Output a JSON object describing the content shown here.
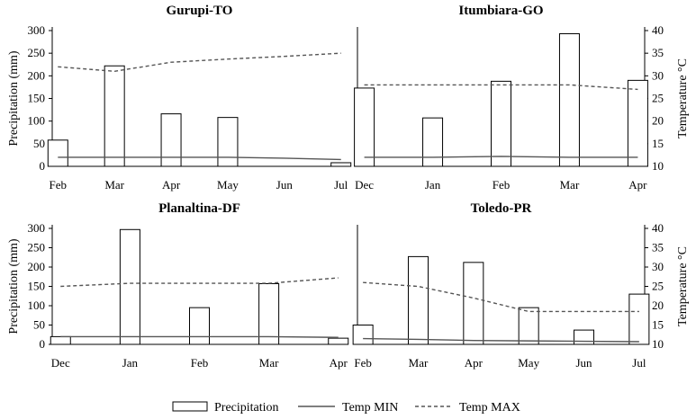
{
  "figure": {
    "legend": {
      "precipitation": "Precipitation",
      "tmin": "Temp MIN",
      "tmax": "Temp MAX"
    },
    "left_axis_label": "Precipitation (mm)",
    "right_axis_label": "Temperature °C"
  },
  "colors": {
    "bar_fill": "#ffffff",
    "stroke": "#000000",
    "tmin": "#555555",
    "tmax": "#555555"
  },
  "chart_data": [
    {
      "type": "bar",
      "title": "Gurupi-TO",
      "categories": [
        "Feb",
        "Mar",
        "Apr",
        "May",
        "Jun",
        "Jul"
      ],
      "ylabel": "Precipitation (mm)",
      "ylim": [
        0,
        300
      ],
      "yticks": [
        0,
        50,
        100,
        150,
        200,
        250,
        300
      ],
      "y2label": "",
      "y2lim": [
        10,
        40
      ],
      "y2ticks": [],
      "series": [
        {
          "name": "Precipitation",
          "kind": "bar",
          "values": [
            58,
            222,
            116,
            108,
            0,
            8
          ]
        },
        {
          "name": "Temp MIN",
          "kind": "line",
          "axis": "y2",
          "values": [
            12,
            12,
            12,
            12,
            11.8,
            11.5
          ]
        },
        {
          "name": "Temp MAX",
          "kind": "dashed-line",
          "axis": "y2",
          "values": [
            32,
            31,
            33,
            33.7,
            34.3,
            35
          ]
        }
      ]
    },
    {
      "type": "bar",
      "title": "Itumbiara-GO",
      "categories": [
        "Dec",
        "Jan",
        "Feb",
        "Mar",
        "Apr"
      ],
      "ylabel": "",
      "ylim": [
        0,
        300
      ],
      "yticks": [],
      "y2label": "Temperature °C",
      "y2lim": [
        10,
        40
      ],
      "y2ticks": [
        10,
        15,
        20,
        25,
        30,
        35,
        40
      ],
      "series": [
        {
          "name": "Precipitation",
          "kind": "bar",
          "values": [
            173,
            107,
            188,
            293,
            190
          ]
        },
        {
          "name": "Temp MIN",
          "kind": "line",
          "axis": "y2",
          "values": [
            12,
            12,
            12.2,
            12,
            12
          ]
        },
        {
          "name": "Temp MAX",
          "kind": "dashed-line",
          "axis": "y2",
          "values": [
            28,
            28,
            28,
            28,
            27
          ]
        }
      ]
    },
    {
      "type": "bar",
      "title": "Planaltina-DF",
      "categories": [
        "Dec",
        "Jan",
        "Feb",
        "Mar",
        "Apr"
      ],
      "ylabel": "Precipitation (mm)",
      "ylim": [
        0,
        300
      ],
      "yticks": [
        0,
        50,
        100,
        150,
        200,
        250,
        300
      ],
      "y2label": "",
      "y2lim": [
        10,
        40
      ],
      "y2ticks": [],
      "series": [
        {
          "name": "Precipitation",
          "kind": "bar",
          "values": [
            20,
            297,
            95,
            157,
            16
          ]
        },
        {
          "name": "Temp MIN",
          "kind": "line",
          "axis": "y2",
          "values": [
            12,
            12,
            12,
            12,
            11.8
          ]
        },
        {
          "name": "Temp MAX",
          "kind": "dashed-line",
          "axis": "y2",
          "values": [
            25,
            25.8,
            25.8,
            25.8,
            27.2
          ]
        }
      ]
    },
    {
      "type": "bar",
      "title": "Toledo-PR",
      "categories": [
        "Feb",
        "Mar",
        "Apr",
        "May",
        "Jun",
        "Jul"
      ],
      "ylabel": "",
      "ylim": [
        0,
        300
      ],
      "yticks": [],
      "y2label": "Temperature °C",
      "y2lim": [
        10,
        40
      ],
      "y2ticks": [
        10,
        15,
        20,
        25,
        30,
        35,
        40
      ],
      "series": [
        {
          "name": "Precipitation",
          "kind": "bar",
          "values": [
            50,
            227,
            212,
            95,
            37,
            130
          ]
        },
        {
          "name": "Temp MIN",
          "kind": "line",
          "axis": "y2",
          "values": [
            11.5,
            11.3,
            11,
            10.9,
            10.8,
            10.7
          ]
        },
        {
          "name": "Temp MAX",
          "kind": "dashed-line",
          "axis": "y2",
          "values": [
            26,
            25,
            22,
            18.5,
            18.5,
            18.5
          ]
        }
      ]
    }
  ]
}
